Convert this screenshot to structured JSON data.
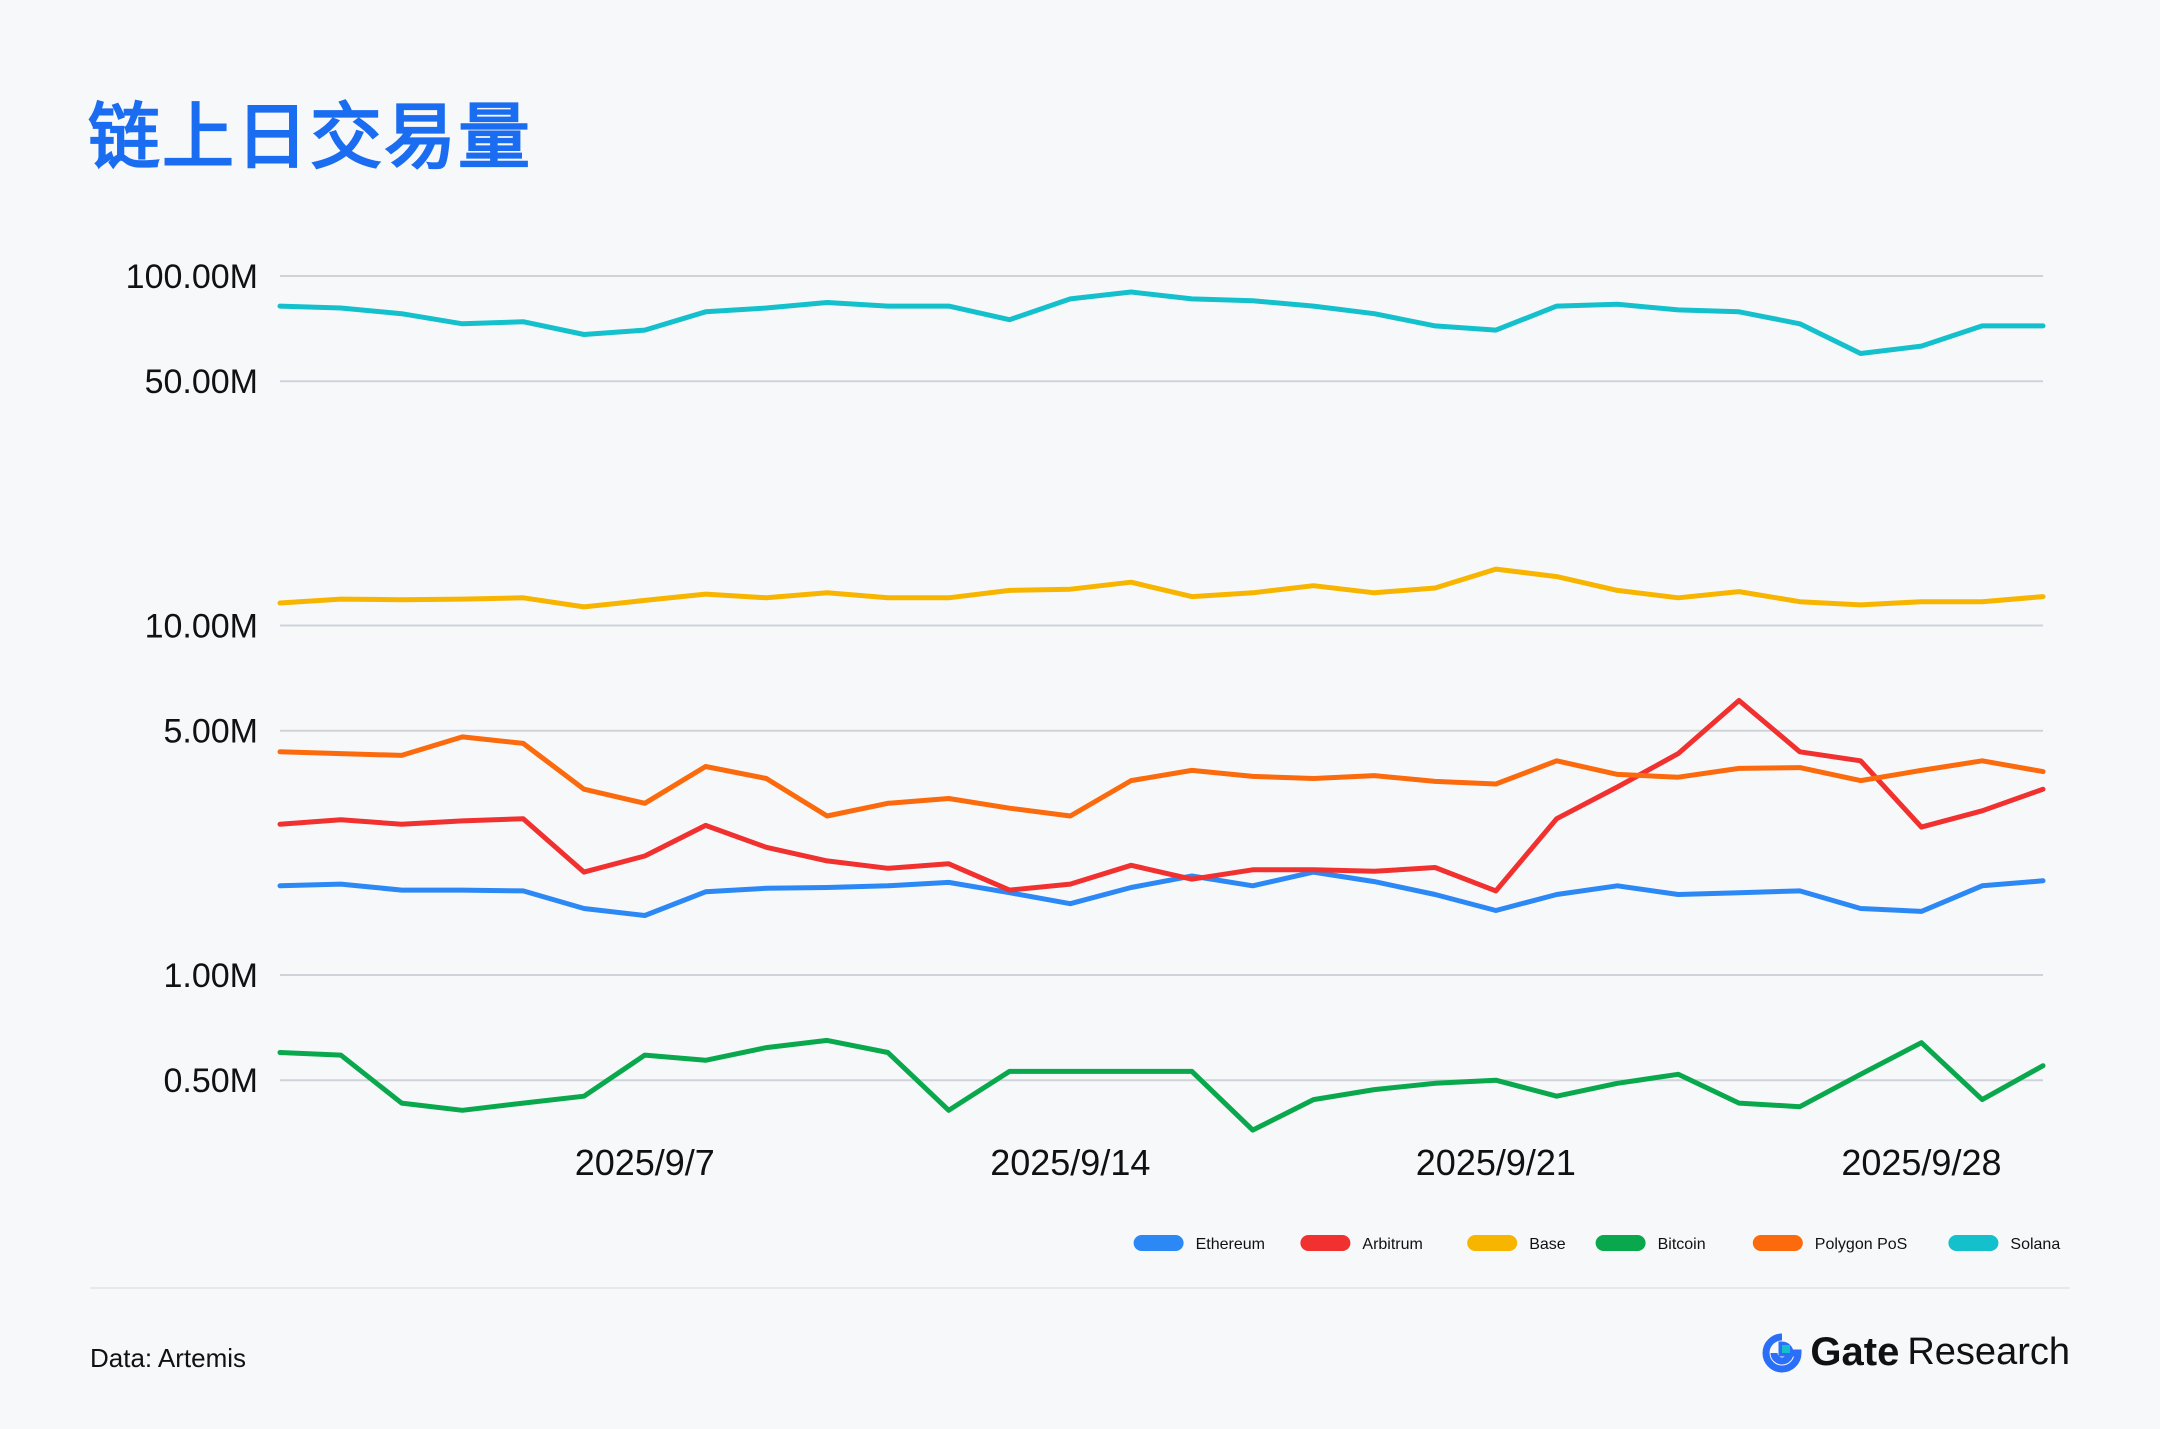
{
  "title": "链上日交易量",
  "source": "Data: Artemis",
  "brand": {
    "logo_icon": "gate-logo-icon",
    "name": "Gate",
    "sub": "Research"
  },
  "chart_data": {
    "type": "line",
    "title": "链上日交易量",
    "yscale": "log",
    "ylim": [
      0.3,
      115
    ],
    "unit": "M",
    "yticks": [
      0.5,
      1,
      5,
      10,
      50,
      100
    ],
    "ytick_labels": [
      "0.50M",
      "1.00M",
      "5.00M",
      "10.00M",
      "50.00M",
      "100.00M"
    ],
    "x": [
      "2025/9/1",
      "2025/9/2",
      "2025/9/3",
      "2025/9/4",
      "2025/9/5",
      "2025/9/6",
      "2025/9/7",
      "2025/9/8",
      "2025/9/9",
      "2025/9/10",
      "2025/9/11",
      "2025/9/12",
      "2025/9/13",
      "2025/9/14",
      "2025/9/15",
      "2025/9/16",
      "2025/9/17",
      "2025/9/18",
      "2025/9/19",
      "2025/9/20",
      "2025/9/21",
      "2025/9/22",
      "2025/9/23",
      "2025/9/24",
      "2025/9/25",
      "2025/9/26",
      "2025/9/27",
      "2025/9/28",
      "2025/9/29",
      "2025/9/30"
    ],
    "xticks": [
      "2025/9/7",
      "2025/9/14",
      "2025/9/21",
      "2025/9/28"
    ],
    "grid": true,
    "legend_position": "bottom-right",
    "series": [
      {
        "name": "Ethereum",
        "color": "#2b88f5",
        "values": [
          1.8,
          1.82,
          1.75,
          1.75,
          1.74,
          1.55,
          1.48,
          1.73,
          1.77,
          1.78,
          1.8,
          1.84,
          1.72,
          1.6,
          1.78,
          1.92,
          1.8,
          1.97,
          1.85,
          1.7,
          1.53,
          1.7,
          1.8,
          1.7,
          1.72,
          1.74,
          1.55,
          1.52,
          1.8,
          1.86
        ]
      },
      {
        "name": "Arbitrum",
        "color": "#f0312f",
        "values": [
          2.7,
          2.78,
          2.7,
          2.76,
          2.8,
          1.97,
          2.19,
          2.68,
          2.32,
          2.12,
          2.02,
          2.08,
          1.75,
          1.82,
          2.06,
          1.88,
          2.0,
          2.0,
          1.98,
          2.03,
          1.74,
          2.8,
          3.45,
          4.3,
          6.1,
          4.35,
          4.1,
          2.65,
          2.95,
          3.4
        ]
      },
      {
        "name": "Base",
        "color": "#f7b500",
        "values": [
          11.6,
          11.9,
          11.85,
          11.9,
          12.0,
          11.3,
          11.8,
          12.3,
          12.0,
          12.4,
          12.0,
          12.0,
          12.6,
          12.7,
          13.3,
          12.1,
          12.4,
          13.0,
          12.4,
          12.8,
          14.5,
          13.8,
          12.6,
          12.0,
          12.5,
          11.7,
          11.45,
          11.7,
          11.7,
          12.1
        ]
      },
      {
        "name": "Bitcoin",
        "color": "#0aa84c",
        "values": [
          0.6,
          0.59,
          0.43,
          0.41,
          0.43,
          0.45,
          0.59,
          0.57,
          0.62,
          0.65,
          0.6,
          0.41,
          0.53,
          0.53,
          0.53,
          0.53,
          0.36,
          0.44,
          0.47,
          0.49,
          0.5,
          0.45,
          0.49,
          0.52,
          0.43,
          0.42,
          0.52,
          0.64,
          0.44,
          0.55
        ]
      },
      {
        "name": "Polygon PoS",
        "color": "#fb6a0c",
        "values": [
          4.35,
          4.3,
          4.25,
          4.8,
          4.6,
          3.4,
          3.1,
          3.95,
          3.65,
          2.85,
          3.1,
          3.2,
          3.0,
          2.85,
          3.6,
          3.85,
          3.7,
          3.65,
          3.72,
          3.58,
          3.52,
          4.1,
          3.75,
          3.68,
          3.9,
          3.92,
          3.6,
          3.85,
          4.1,
          3.82
        ]
      },
      {
        "name": "Solana",
        "color": "#14c0cc",
        "values": [
          82,
          81,
          78,
          73,
          74,
          68,
          70,
          79,
          81,
          84,
          82,
          82,
          75,
          86,
          90,
          86,
          85,
          82,
          78,
          72,
          70,
          82,
          83,
          80,
          79,
          73,
          60,
          63,
          72,
          72
        ]
      }
    ]
  }
}
